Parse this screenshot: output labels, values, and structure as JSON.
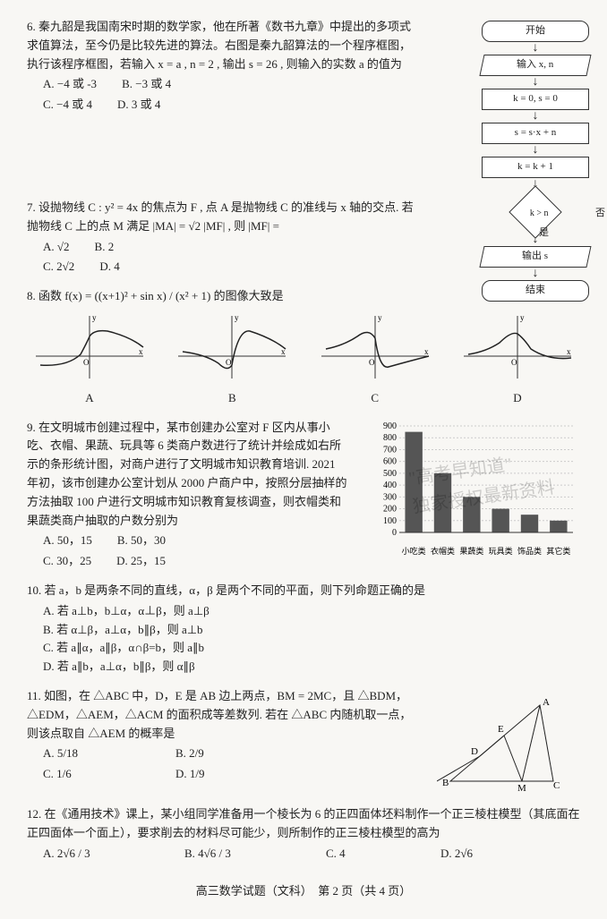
{
  "q6": {
    "num": "6.",
    "text": "秦九韶是我国南宋时期的数学家，他在所著《数书九章》中提出的多项式求值算法，至今仍是比较先进的算法。右图是秦九韶算法的一个程序框图，执行该程序框图，若输入 x = a , n = 2 , 输出 s = 26 , 则输入的实数 a 的值为",
    "A": "A. −4 或 -3",
    "B": "B. −3 或 4",
    "C": "C. −4 或 4",
    "D": "D. 3 或 4"
  },
  "flow": {
    "start": "开始",
    "in": "输入 x, n",
    "init": "k = 0, s = 0",
    "step1": "s = s·x + n",
    "step2": "k = k + 1",
    "cond": "k > n",
    "yes": "是",
    "no": "否",
    "out": "输出 s",
    "end": "结束"
  },
  "q7": {
    "num": "7.",
    "text": "设抛物线 C : y² = 4x 的焦点为 F , 点 A 是抛物线 C 的准线与 x 轴的交点. 若抛物线 C 上的点 M 满足 |MA| = √2 |MF| , 则 |MF| =",
    "A": "A. √2",
    "B": "B. 2",
    "C": "C. 2√2",
    "D": "D. 4"
  },
  "q8": {
    "num": "8.",
    "text": "函数 f(x) = ((x+1)² + sin x) / (x² + 1) 的图像大致是",
    "labels": {
      "A": "A",
      "B": "B",
      "C": "C",
      "D": "D"
    },
    "axis_color": "#333",
    "curve_color": "#222"
  },
  "q9": {
    "num": "9.",
    "text": "在文明城市创建过程中，某市创建办公室对 F 区内从事小吃、衣帽、果蔬、玩具等 6 类商户数进行了统计并绘成如右所示的条形统计图，对商户进行了文明城市知识教育培训. 2021 年初，该市创建办公室计划从 2000 户商户中，按照分层抽样的方法抽取 100 户进行文明城市知识教育复核调查，则衣帽类和果蔬类商户抽取的户数分别为",
    "A": "A. 50，15",
    "B": "B. 50，30",
    "C": "C. 30，25",
    "D": "D. 25，15",
    "chart": {
      "type": "bar",
      "categories": [
        "小吃类",
        "衣帽类",
        "果蔬类",
        "玩具类",
        "饰品类",
        "其它类"
      ],
      "values": [
        850,
        500,
        300,
        200,
        150,
        100
      ],
      "ylim": [
        0,
        900
      ],
      "ytick_step": 100,
      "bar_color": "#555",
      "grid_color": "#ccc",
      "label_fontsize": 10
    }
  },
  "watermark": {
    "line1": "\"高考早知道\"",
    "line2": "独家授权最新资料"
  },
  "q10": {
    "num": "10.",
    "text": "若 a，b 是两条不同的直线，α，β 是两个不同的平面，则下列命题正确的是",
    "A": "A. 若 a⊥b，b⊥α，α⊥β，则 a⊥β",
    "B": "B. 若 α⊥β，a⊥α，b∥β，则 a⊥b",
    "C": "C. 若 a∥α，a∥β，α∩β=b，则 a∥b",
    "D": "D. 若 a∥b，a⊥α，b∥β，则 α∥β"
  },
  "q11": {
    "num": "11.",
    "text": "如图，在 △ABC 中，D，E 是 AB 边上两点，BM = 2MC，且 △BDM，△EDM，△AEM，△ACM 的面积成等差数列. 若在 △ABC 内随机取一点，则该点取自 △AEM 的概率是",
    "A": "A. 5/18",
    "B": "B. 2/9",
    "C": "C. 1/6",
    "D": "D. 1/9",
    "tri": {
      "labels": [
        "A",
        "B",
        "C",
        "D",
        "E",
        "M"
      ],
      "stroke": "#222"
    }
  },
  "q12": {
    "num": "12.",
    "text": "在《通用技术》课上，某小组同学准备用一个棱长为 6 的正四面体坯料制作一个正三棱柱模型（其底面在正四面体一个面上），要求削去的材料尽可能少，则所制作的正三棱柱模型的高为",
    "A": "A. 2√6 / 3",
    "B": "B. 4√6 / 3",
    "C": "C. 4",
    "D": "D. 2√6"
  },
  "footer": "高三数学试题（文科）　第 2 页（共 4 页）"
}
